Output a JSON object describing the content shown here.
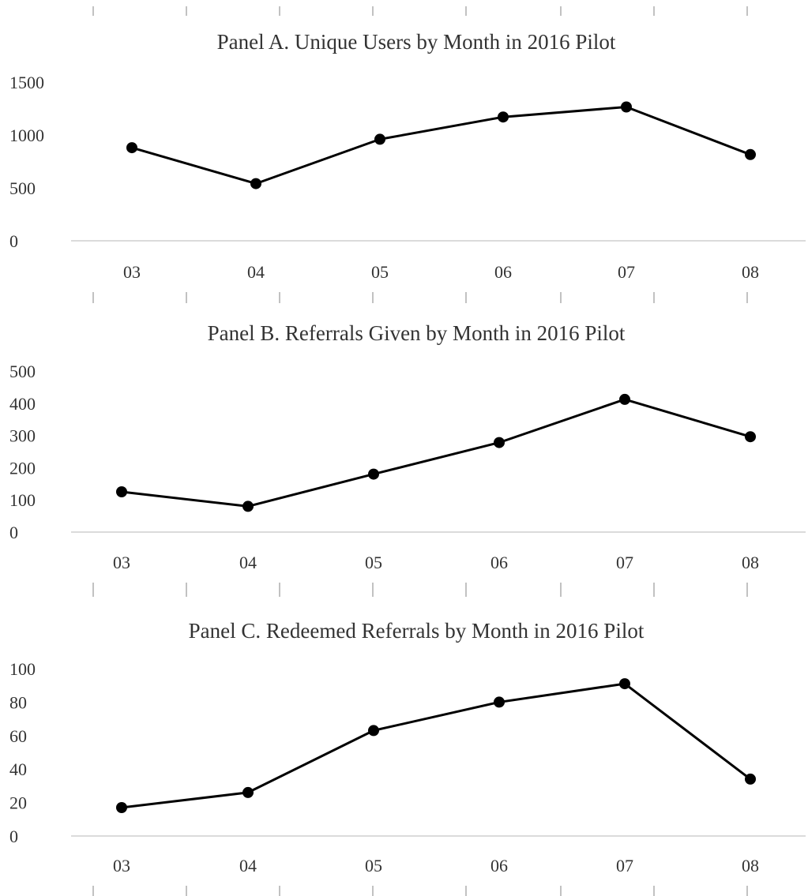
{
  "chart_data": [
    {
      "type": "line",
      "title": "Panel A. Unique Users by Month in 2016 Pilot",
      "categories": [
        "03",
        "04",
        "05",
        "06",
        "07",
        "08"
      ],
      "values": [
        880,
        540,
        960,
        1170,
        1265,
        815
      ],
      "yticks": [
        "0",
        "500",
        "1000",
        "1500"
      ],
      "ylim": [
        0,
        1500
      ],
      "xlabel": "",
      "ylabel": "",
      "grid": false,
      "legend": "none"
    },
    {
      "type": "line",
      "title": "Panel B. Referrals Given by Month in 2016 Pilot",
      "categories": [
        "03",
        "04",
        "05",
        "06",
        "07",
        "08"
      ],
      "values": [
        125,
        80,
        180,
        278,
        412,
        296
      ],
      "yticks": [
        "0",
        "100",
        "200",
        "300",
        "400",
        "500"
      ],
      "ylim": [
        0,
        500
      ],
      "xlabel": "",
      "ylabel": "",
      "grid": false,
      "legend": "none"
    },
    {
      "type": "line",
      "title": "Panel C. Redeemed Referrals by Month in 2016 Pilot",
      "categories": [
        "03",
        "04",
        "05",
        "06",
        "07",
        "08"
      ],
      "values": [
        17,
        26,
        63,
        80,
        91,
        34
      ],
      "yticks": [
        "0",
        "20",
        "40",
        "60",
        "80",
        "100"
      ],
      "ylim": [
        0,
        100
      ],
      "xlabel": "",
      "ylabel": "",
      "grid": false,
      "legend": "none"
    }
  ]
}
